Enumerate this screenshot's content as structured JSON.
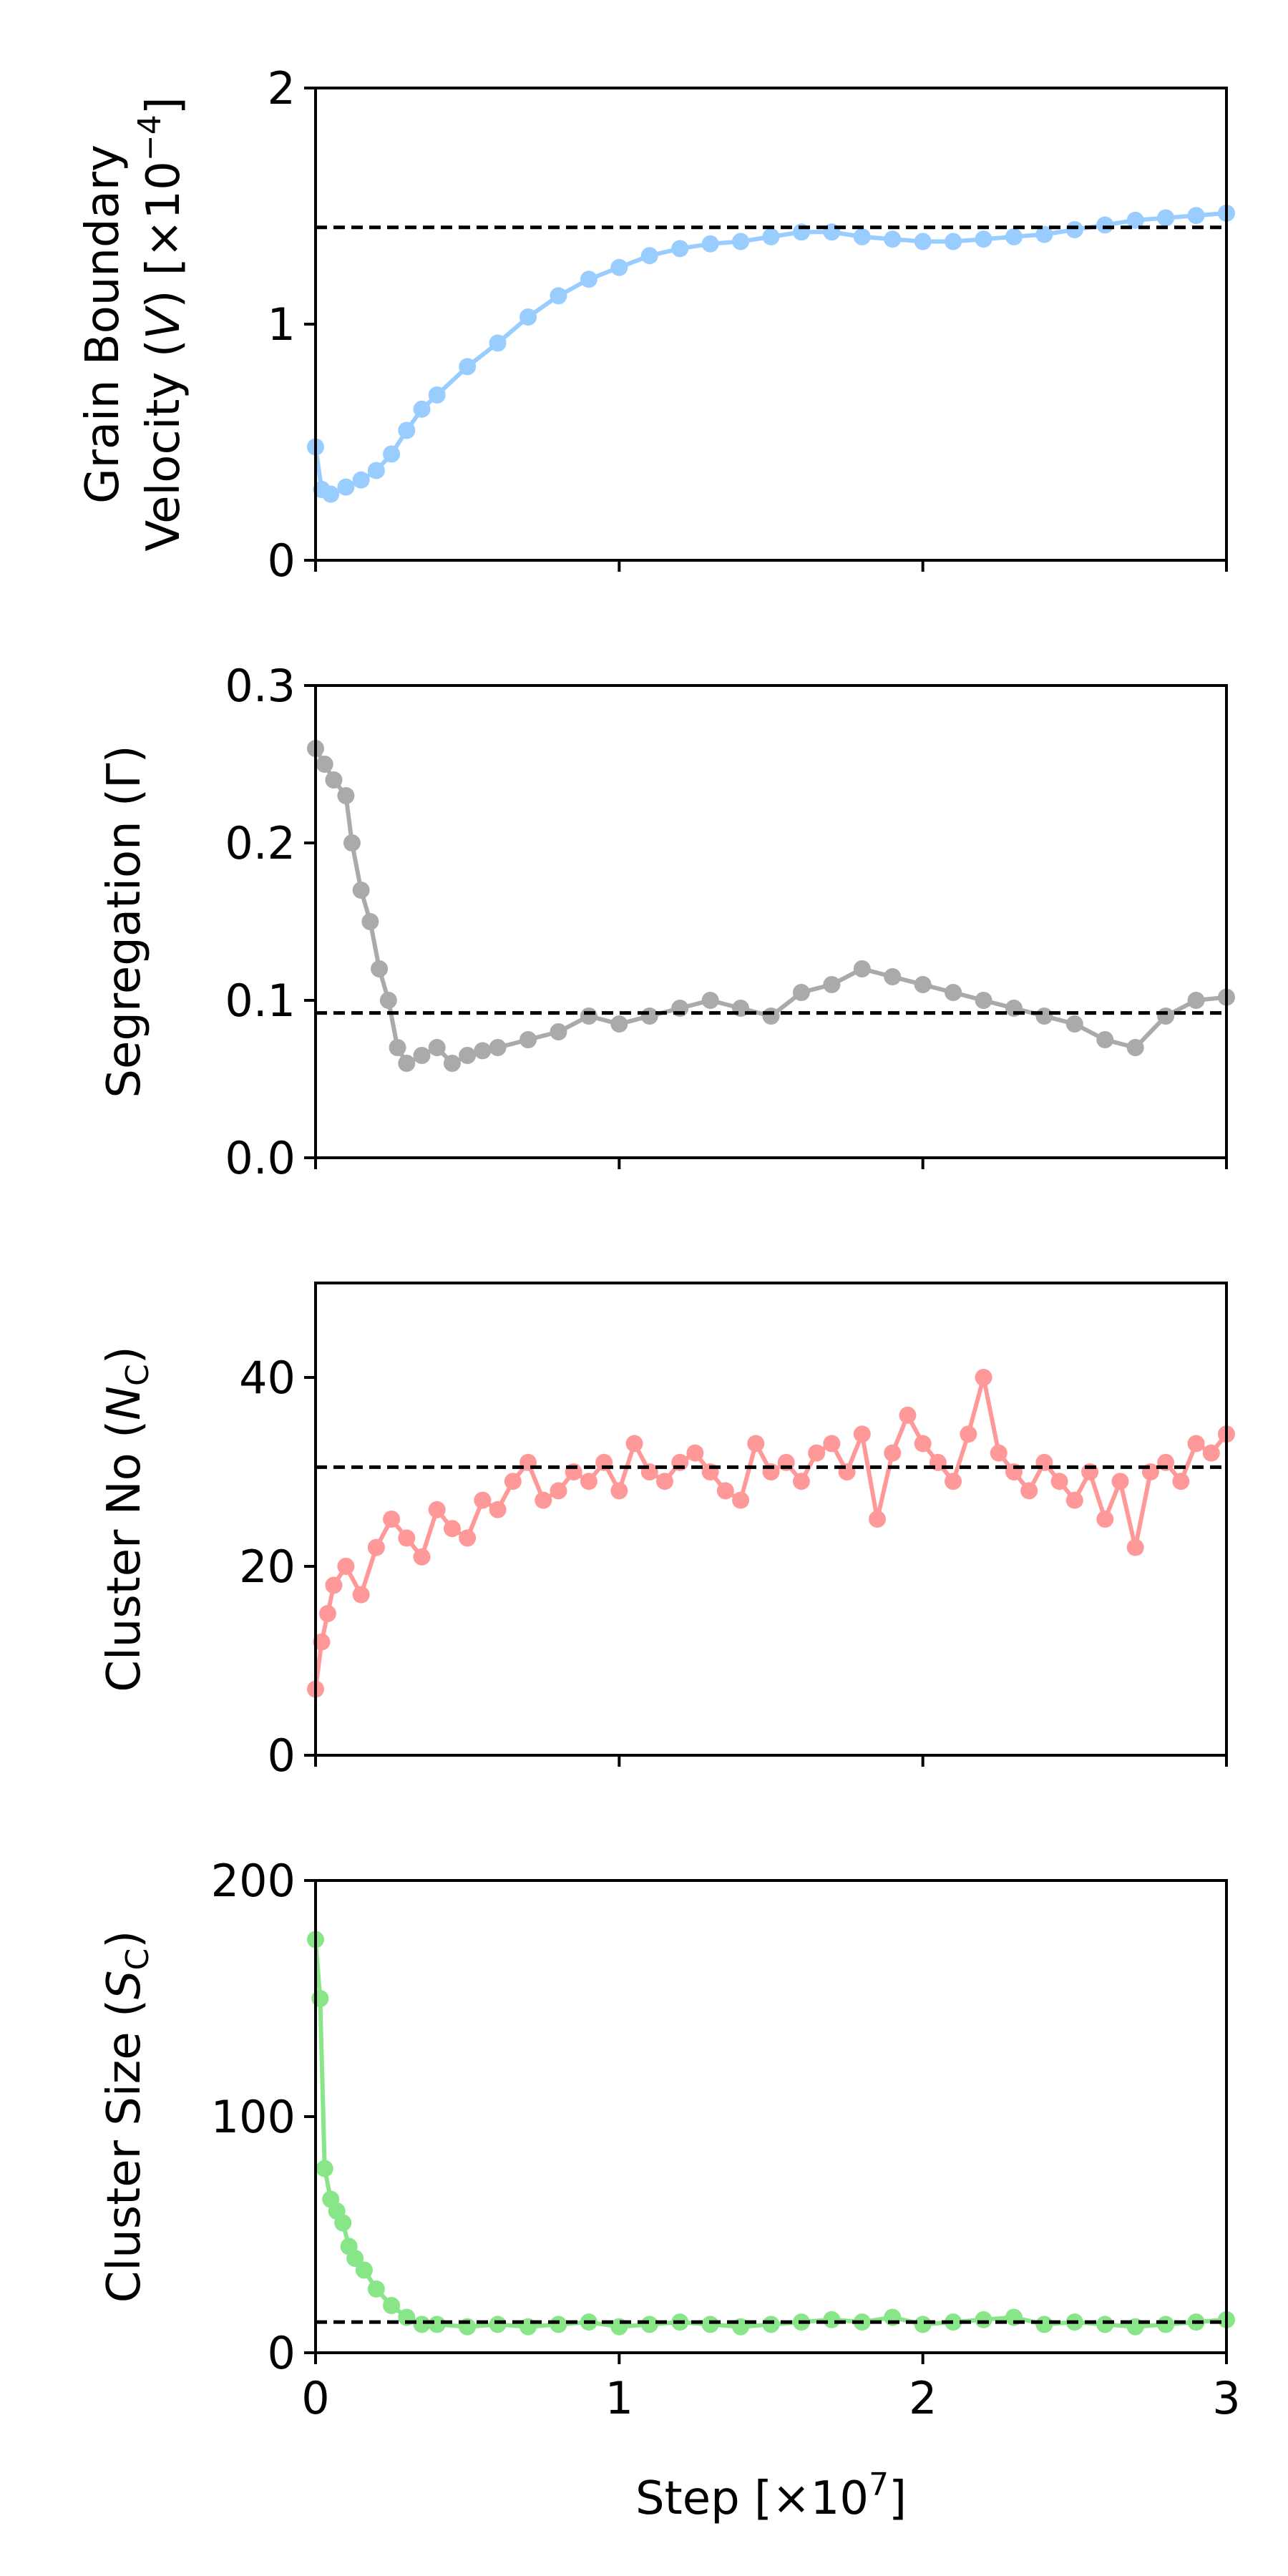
{
  "chart_data": [
    {
      "type": "scatter",
      "ylabel_parts": [
        "Grain Boundary",
        "Velocity (",
        "V",
        ") [×10",
        "−4",
        "]"
      ],
      "xlim": [
        0,
        3
      ],
      "ylim": [
        0,
        2
      ],
      "yticks": [
        "0",
        "1",
        "2"
      ],
      "color": "#99ccff",
      "reference_line": 1.41,
      "series": [
        {
          "x": [
            0,
            0.02,
            0.05,
            0.1,
            0.15,
            0.2,
            0.25,
            0.3,
            0.35,
            0.4,
            0.5,
            0.6,
            0.7,
            0.8,
            0.9,
            1.0,
            1.1,
            1.2,
            1.3,
            1.4,
            1.5,
            1.6,
            1.7,
            1.8,
            1.9,
            2.0,
            2.1,
            2.2,
            2.3,
            2.4,
            2.5,
            2.6,
            2.7,
            2.8,
            2.9,
            3.0
          ],
          "y": [
            0.48,
            0.3,
            0.28,
            0.31,
            0.34,
            0.38,
            0.45,
            0.55,
            0.64,
            0.7,
            0.82,
            0.92,
            1.03,
            1.12,
            1.19,
            1.24,
            1.29,
            1.32,
            1.34,
            1.35,
            1.37,
            1.39,
            1.39,
            1.37,
            1.36,
            1.35,
            1.35,
            1.36,
            1.37,
            1.38,
            1.4,
            1.42,
            1.44,
            1.45,
            1.46,
            1.47
          ]
        }
      ]
    },
    {
      "type": "scatter",
      "ylabel_parts": [
        "Segregation (Γ)"
      ],
      "xlim": [
        0,
        3
      ],
      "ylim": [
        0,
        0.3
      ],
      "yticks": [
        "0.0",
        "0.1",
        "0.2",
        "0.3"
      ],
      "color": "#aaaaaa",
      "reference_line": 0.092,
      "series": [
        {
          "x": [
            0,
            0.03,
            0.06,
            0.1,
            0.12,
            0.15,
            0.18,
            0.21,
            0.24,
            0.27,
            0.3,
            0.35,
            0.4,
            0.45,
            0.5,
            0.55,
            0.6,
            0.7,
            0.8,
            0.9,
            1.0,
            1.1,
            1.2,
            1.3,
            1.4,
            1.5,
            1.6,
            1.7,
            1.8,
            1.9,
            2.0,
            2.1,
            2.2,
            2.3,
            2.4,
            2.5,
            2.6,
            2.7,
            2.8,
            2.9,
            3.0
          ],
          "y": [
            0.26,
            0.25,
            0.24,
            0.23,
            0.2,
            0.17,
            0.15,
            0.12,
            0.1,
            0.07,
            0.06,
            0.065,
            0.07,
            0.06,
            0.065,
            0.068,
            0.07,
            0.075,
            0.08,
            0.09,
            0.085,
            0.09,
            0.095,
            0.1,
            0.095,
            0.09,
            0.105,
            0.11,
            0.12,
            0.115,
            0.11,
            0.105,
            0.1,
            0.095,
            0.09,
            0.085,
            0.075,
            0.07,
            0.09,
            0.1,
            0.102
          ]
        }
      ]
    },
    {
      "type": "scatter",
      "ylabel_parts": [
        "Cluster No  (",
        "N",
        "C",
        ")"
      ],
      "xlim": [
        0,
        3
      ],
      "ylim": [
        0,
        50
      ],
      "yticks": [
        "0",
        "20",
        "40"
      ],
      "color": "#ff9999",
      "reference_line": 30.5,
      "series": [
        {
          "x": [
            0,
            0.02,
            0.04,
            0.06,
            0.1,
            0.15,
            0.2,
            0.25,
            0.3,
            0.35,
            0.4,
            0.45,
            0.5,
            0.55,
            0.6,
            0.65,
            0.7,
            0.75,
            0.8,
            0.85,
            0.9,
            0.95,
            1.0,
            1.05,
            1.1,
            1.15,
            1.2,
            1.25,
            1.3,
            1.35,
            1.4,
            1.45,
            1.5,
            1.55,
            1.6,
            1.65,
            1.7,
            1.75,
            1.8,
            1.85,
            1.9,
            1.95,
            2.0,
            2.05,
            2.1,
            2.15,
            2.2,
            2.25,
            2.3,
            2.35,
            2.4,
            2.45,
            2.5,
            2.55,
            2.6,
            2.65,
            2.7,
            2.75,
            2.8,
            2.85,
            2.9,
            2.95,
            3.0
          ],
          "y": [
            7,
            12,
            15,
            18,
            20,
            17,
            22,
            25,
            23,
            21,
            26,
            24,
            23,
            27,
            26,
            29,
            31,
            27,
            28,
            30,
            29,
            31,
            28,
            33,
            30,
            29,
            31,
            32,
            30,
            28,
            27,
            33,
            30,
            31,
            29,
            32,
            33,
            30,
            34,
            25,
            32,
            36,
            33,
            31,
            29,
            34,
            40,
            32,
            30,
            28,
            31,
            29,
            27,
            30,
            25,
            29,
            22,
            30,
            31,
            29,
            33,
            32,
            34
          ]
        }
      ]
    },
    {
      "type": "scatter",
      "ylabel_parts": [
        "Cluster Size (",
        "S",
        "C",
        ")"
      ],
      "xlabel_parts": [
        "Step [×10",
        "7",
        "]"
      ],
      "xlim": [
        0,
        3
      ],
      "ylim": [
        0,
        200
      ],
      "xticks": [
        "0",
        "1",
        "2",
        "3"
      ],
      "yticks": [
        "0",
        "100",
        "200"
      ],
      "color": "#88e688",
      "reference_line": 13,
      "series": [
        {
          "x": [
            0,
            0.015,
            0.03,
            0.05,
            0.07,
            0.09,
            0.11,
            0.13,
            0.16,
            0.2,
            0.25,
            0.3,
            0.35,
            0.4,
            0.5,
            0.6,
            0.7,
            0.8,
            0.9,
            1.0,
            1.1,
            1.2,
            1.3,
            1.4,
            1.5,
            1.6,
            1.7,
            1.8,
            1.9,
            2.0,
            2.1,
            2.2,
            2.3,
            2.4,
            2.5,
            2.6,
            2.7,
            2.8,
            2.9,
            3.0
          ],
          "y": [
            175,
            150,
            78,
            65,
            60,
            55,
            45,
            40,
            35,
            27,
            20,
            15,
            12,
            12,
            11,
            12,
            11,
            12,
            13,
            11,
            12,
            13,
            12,
            11,
            12,
            13,
            14,
            13,
            15,
            12,
            13,
            14,
            15,
            12,
            13,
            12,
            11,
            12,
            13,
            14
          ]
        }
      ]
    }
  ]
}
